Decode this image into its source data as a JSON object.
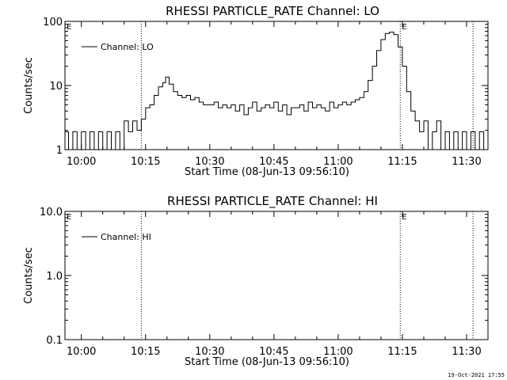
{
  "footer_timestamp": "19-Oct-2021 17:55",
  "chart_data": [
    {
      "type": "line",
      "title": "RHESSI PARTICLE_RATE Channel: LO",
      "xlabel": "Start Time (08-Jun-13 09:56:10)",
      "ylabel": "Counts/sec",
      "y_scale": "log",
      "ylim": [
        1,
        100
      ],
      "xlim": [
        "09:56:10",
        "11:35:00"
      ],
      "x_ticks": [
        "10:00",
        "10:15",
        "10:30",
        "10:45",
        "11:00",
        "11:15",
        "11:30"
      ],
      "y_ticks": [
        "1",
        "10",
        "100"
      ],
      "legend": {
        "entries": [
          "Channel: LO"
        ],
        "placement": "top-left"
      },
      "vertical_markers": [
        {
          "time": "10:14:00",
          "label": ""
        },
        {
          "time": "11:14:30",
          "label": "E"
        },
        {
          "time": "11:31:30",
          "label": ""
        }
      ],
      "start_marker_label": "E",
      "series": [
        {
          "name": "Channel: LO",
          "points": [
            [
              "09:56:10",
              1.9
            ],
            [
              "09:57:00",
              1.0
            ],
            [
              "09:58:00",
              1.9
            ],
            [
              "09:59:00",
              1.0
            ],
            [
              "10:00:00",
              1.9
            ],
            [
              "10:01:00",
              1.0
            ],
            [
              "10:02:00",
              1.9
            ],
            [
              "10:03:00",
              1.0
            ],
            [
              "10:04:00",
              1.9
            ],
            [
              "10:05:00",
              1.0
            ],
            [
              "10:06:00",
              1.9
            ],
            [
              "10:07:00",
              1.0
            ],
            [
              "10:08:00",
              1.9
            ],
            [
              "10:09:00",
              1.0
            ],
            [
              "10:10:00",
              2.8
            ],
            [
              "10:11:00",
              1.9
            ],
            [
              "10:12:00",
              2.8
            ],
            [
              "10:13:00",
              2.0
            ],
            [
              "10:14:00",
              3.0
            ],
            [
              "10:15:00",
              4.5
            ],
            [
              "10:16:00",
              5.0
            ],
            [
              "10:17:00",
              7.0
            ],
            [
              "10:18:00",
              9.5
            ],
            [
              "10:19:00",
              11.0
            ],
            [
              "10:19:40",
              13.5
            ],
            [
              "10:20:30",
              10.5
            ],
            [
              "10:21:30",
              8.0
            ],
            [
              "10:22:30",
              7.0
            ],
            [
              "10:23:30",
              6.5
            ],
            [
              "10:24:30",
              7.0
            ],
            [
              "10:25:30",
              6.0
            ],
            [
              "10:26:30",
              6.5
            ],
            [
              "10:27:30",
              5.5
            ],
            [
              "10:28:30",
              5.0
            ],
            [
              "10:30:00",
              5.0
            ],
            [
              "10:31:00",
              5.5
            ],
            [
              "10:32:00",
              4.5
            ],
            [
              "10:33:00",
              5.0
            ],
            [
              "10:34:00",
              4.5
            ],
            [
              "10:35:00",
              5.0
            ],
            [
              "10:36:00",
              4.0
            ],
            [
              "10:37:00",
              5.0
            ],
            [
              "10:38:00",
              3.5
            ],
            [
              "10:39:00",
              4.5
            ],
            [
              "10:40:00",
              5.5
            ],
            [
              "10:41:00",
              4.0
            ],
            [
              "10:42:00",
              4.5
            ],
            [
              "10:43:00",
              5.0
            ],
            [
              "10:44:00",
              4.5
            ],
            [
              "10:45:00",
              5.5
            ],
            [
              "10:46:00",
              4.0
            ],
            [
              "10:47:00",
              5.0
            ],
            [
              "10:48:00",
              3.5
            ],
            [
              "10:49:00",
              4.5
            ],
            [
              "10:50:00",
              4.5
            ],
            [
              "10:51:00",
              5.0
            ],
            [
              "10:52:00",
              4.0
            ],
            [
              "10:53:00",
              5.5
            ],
            [
              "10:54:00",
              4.5
            ],
            [
              "10:55:00",
              5.0
            ],
            [
              "10:56:00",
              4.5
            ],
            [
              "10:57:00",
              4.0
            ],
            [
              "10:58:00",
              5.5
            ],
            [
              "10:59:00",
              4.5
            ],
            [
              "11:00:00",
              5.0
            ],
            [
              "11:01:00",
              5.5
            ],
            [
              "11:02:00",
              5.0
            ],
            [
              "11:03:00",
              5.5
            ],
            [
              "11:04:00",
              6.0
            ],
            [
              "11:05:00",
              6.5
            ],
            [
              "11:06:00",
              8.0
            ],
            [
              "11:07:00",
              12.0
            ],
            [
              "11:08:00",
              20.0
            ],
            [
              "11:09:00",
              35.0
            ],
            [
              "11:10:00",
              52.0
            ],
            [
              "11:11:00",
              65.0
            ],
            [
              "11:12:00",
              68.0
            ],
            [
              "11:13:00",
              62.0
            ],
            [
              "11:14:00",
              40.0
            ],
            [
              "11:15:00",
              20.0
            ],
            [
              "11:16:00",
              8.0
            ],
            [
              "11:17:00",
              4.0
            ],
            [
              "11:18:00",
              2.8
            ],
            [
              "11:19:00",
              1.9
            ],
            [
              "11:20:00",
              2.8
            ],
            [
              "11:21:00",
              1.0
            ],
            [
              "11:22:00",
              1.9
            ],
            [
              "11:23:00",
              2.8
            ],
            [
              "11:24:00",
              1.0
            ],
            [
              "11:25:00",
              1.9
            ],
            [
              "11:26:00",
              1.0
            ],
            [
              "11:27:00",
              1.9
            ],
            [
              "11:28:00",
              1.0
            ],
            [
              "11:29:00",
              1.9
            ],
            [
              "11:30:00",
              1.0
            ],
            [
              "11:31:00",
              1.9
            ],
            [
              "11:32:00",
              1.0
            ],
            [
              "11:33:00",
              1.9
            ],
            [
              "11:34:00",
              1.0
            ]
          ]
        }
      ]
    },
    {
      "type": "line",
      "title": "RHESSI PARTICLE_RATE Channel: HI",
      "xlabel": "Start Time (08-Jun-13 09:56:10)",
      "ylabel": "Counts/sec",
      "y_scale": "log",
      "ylim": [
        0.1,
        10
      ],
      "xlim": [
        "09:56:10",
        "11:35:00"
      ],
      "x_ticks": [
        "10:00",
        "10:15",
        "10:30",
        "10:45",
        "11:00",
        "11:15",
        "11:30"
      ],
      "y_ticks": [
        "0.1",
        "1.0",
        "10.0"
      ],
      "legend": {
        "entries": [
          "Channel: HI"
        ],
        "placement": "top-left"
      },
      "vertical_markers": [
        {
          "time": "10:14:00",
          "label": ""
        },
        {
          "time": "11:14:30",
          "label": "E"
        },
        {
          "time": "11:31:30",
          "label": ""
        }
      ],
      "start_marker_label": "E",
      "series": [
        {
          "name": "Channel: HI",
          "points": []
        }
      ]
    }
  ]
}
